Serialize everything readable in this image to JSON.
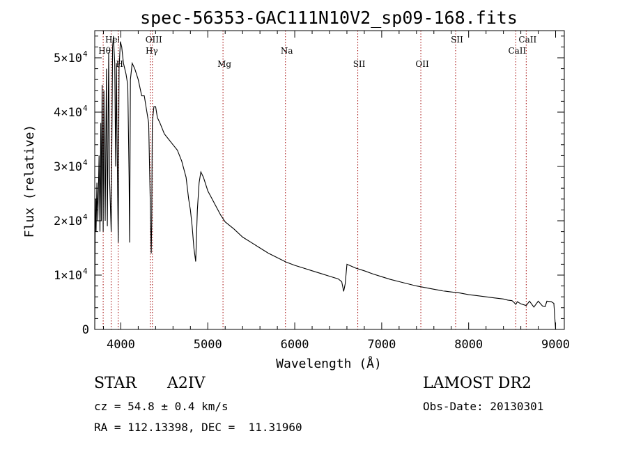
{
  "chart_data": {
    "type": "line",
    "title": "spec-56353-GAC111N10V2_sp09-168.fits",
    "xlabel": "Wavelength (Å)",
    "ylabel": "Flux (relative)",
    "xlim": [
      3700,
      9100
    ],
    "ylim": [
      0,
      55000
    ],
    "x_ticks": [
      4000,
      5000,
      6000,
      7000,
      8000,
      9000
    ],
    "y_ticks": [
      {
        "value": 0,
        "mantissa": "0",
        "exp": ""
      },
      {
        "value": 10000,
        "mantissa": "1×10",
        "exp": "4"
      },
      {
        "value": 20000,
        "mantissa": "2×10",
        "exp": "4"
      },
      {
        "value": 30000,
        "mantissa": "3×10",
        "exp": "4"
      },
      {
        "value": 40000,
        "mantissa": "4×10",
        "exp": "4"
      },
      {
        "value": 50000,
        "mantissa": "5×10",
        "exp": "4"
      }
    ],
    "series": [
      {
        "x": [
          3700,
          3705,
          3712,
          3715,
          3725,
          3735,
          3750,
          3760,
          3770,
          3775,
          3785,
          3797,
          3805,
          3820,
          3835,
          3845,
          3860,
          3870,
          3889,
          3905,
          3915,
          3930,
          3940,
          3950,
          3955,
          3970,
          3980,
          3995,
          4010,
          4030,
          4060,
          4080,
          4095,
          4101,
          4110,
          4130,
          4160,
          4200,
          4240,
          4270,
          4290,
          4320,
          4340,
          4350,
          4355,
          4362,
          4380,
          4400,
          4420,
          4450,
          4500,
          4550,
          4600,
          4650,
          4700,
          4750,
          4780,
          4800,
          4820,
          4840,
          4861,
          4880,
          4900,
          4920,
          4950,
          5000,
          5050,
          5100,
          5150,
          5200,
          5300,
          5400,
          5500,
          5600,
          5700,
          5800,
          5900,
          6000,
          6100,
          6200,
          6300,
          6400,
          6500,
          6540,
          6563,
          6580,
          6600,
          6700,
          6800,
          6900,
          7000,
          7100,
          7200,
          7300,
          7400,
          7500,
          7600,
          7700,
          7800,
          7900,
          8000,
          8100,
          8200,
          8300,
          8400,
          8450,
          8498,
          8520,
          8542,
          8560,
          8600,
          8662,
          8700,
          8750,
          8800,
          8850,
          8880,
          8900,
          8950,
          8980,
          9000
        ],
        "y": [
          0,
          18000,
          24000,
          18000,
          27000,
          20000,
          32000,
          18000,
          38000,
          20000,
          45000,
          18000,
          44000,
          20000,
          48000,
          19000,
          51000,
          28000,
          18000,
          52000,
          54000,
          49000,
          30000,
          49000,
          38000,
          16000,
          48000,
          53000,
          52000,
          49000,
          47000,
          45000,
          28000,
          16000,
          46000,
          49000,
          48000,
          46000,
          43000,
          43000,
          41000,
          38000,
          22000,
          14000,
          20000,
          38000,
          41000,
          41000,
          39000,
          38000,
          36000,
          35000,
          34000,
          33000,
          31000,
          28000,
          24000,
          22000,
          19000,
          15000,
          12500,
          22000,
          27000,
          29000,
          28000,
          25500,
          24000,
          22500,
          21000,
          19800,
          18500,
          17000,
          16000,
          15000,
          14000,
          13200,
          12400,
          11800,
          11300,
          10800,
          10300,
          9800,
          9300,
          8800,
          7000,
          8400,
          12000,
          11300,
          10800,
          10200,
          9700,
          9200,
          8800,
          8400,
          8000,
          7700,
          7400,
          7100,
          6900,
          6700,
          6400,
          6200,
          6000,
          5800,
          5600,
          5400,
          5300,
          5000,
          4600,
          5100,
          4700,
          4400,
          5200,
          4100,
          5200,
          4300,
          4200,
          5200,
          5100,
          4800,
          0
        ]
      }
    ],
    "grid": false,
    "spectral_lines": [
      {
        "label": "Heǀ",
        "x": 3889,
        "row": 1
      },
      {
        "label": "Hθ",
        "x": 3797,
        "row": 2
      },
      {
        "label": "H",
        "x": 3970,
        "row": 3
      },
      {
        "label": "OIII",
        "x": 4363,
        "row": 1
      },
      {
        "label": "Hγ",
        "x": 4340,
        "row": 2
      },
      {
        "label": "Mg",
        "x": 5175,
        "row": 3
      },
      {
        "label": "Na",
        "x": 5893,
        "row": 2
      },
      {
        "label": "SII",
        "x": 6725,
        "row": 3
      },
      {
        "label": "OII",
        "x": 7450,
        "row": 3
      },
      {
        "label": "SII",
        "x": 7850,
        "row": 1
      },
      {
        "label": "CaII",
        "x": 8542,
        "row": 2
      },
      {
        "label": "CaII",
        "x": 8662,
        "row": 1
      }
    ],
    "colors": {
      "line": "#000000",
      "marker": "#a00000"
    }
  },
  "footer": {
    "object_type": "STAR",
    "subclass": "A2IV",
    "survey": "LAMOST DR2",
    "cz": "cz = 54.8 ± 0.4 km/s",
    "obs_date": "Obs-Date: 20130301",
    "coords": "RA = 112.13398, DEC =  11.31960"
  }
}
